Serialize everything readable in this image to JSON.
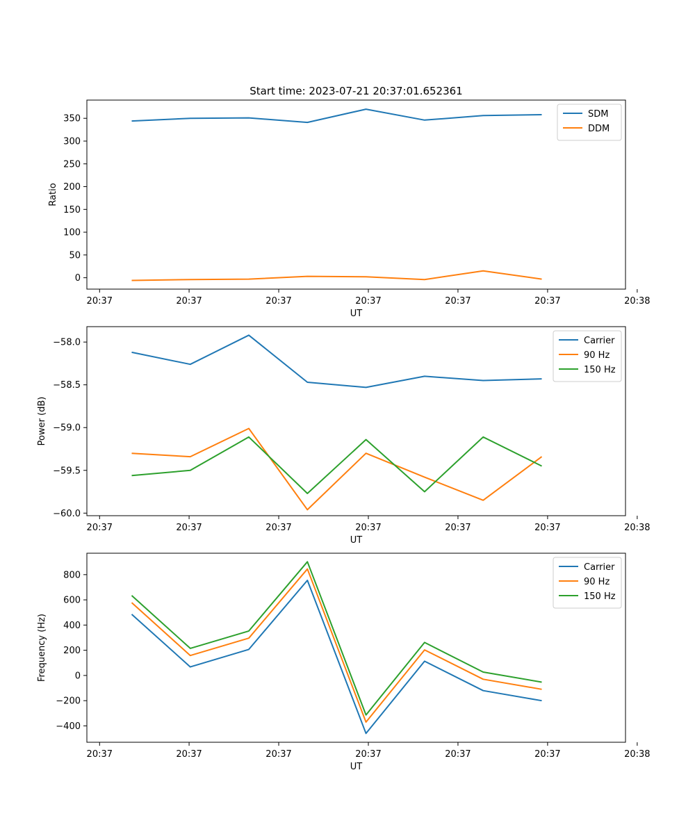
{
  "title": "Start time: 2023-07-21 20:37:01.652361",
  "colors": {
    "blue": "#1f77b4",
    "orange": "#ff7f0e",
    "green": "#2ca02c"
  },
  "chart_data": [
    {
      "type": "line",
      "ylabel": "Ratio",
      "xlabel": "UT",
      "x": [
        1,
        2,
        3,
        4,
        5,
        6,
        7,
        8
      ],
      "xlim": [
        0.235,
        9.43
      ],
      "xticks": [
        0.452,
        1.98,
        3.51,
        5.04,
        6.57,
        8.1,
        9.63
      ],
      "xtick_labels": [
        "20:37",
        "20:37",
        "20:37",
        "20:37",
        "20:37",
        "20:37",
        "20:38"
      ],
      "ylim": [
        -25,
        390
      ],
      "yticks": [
        0,
        50,
        100,
        150,
        200,
        250,
        300,
        350
      ],
      "ytick_labels": [
        "0",
        "50",
        "100",
        "150",
        "200",
        "250",
        "300",
        "350"
      ],
      "legend_loc": "upper right",
      "series": [
        {
          "name": "SDM",
          "color": "blue",
          "values": [
            344,
            350,
            351,
            341,
            370,
            346,
            356,
            358
          ]
        },
        {
          "name": "DDM",
          "color": "orange",
          "values": [
            -6,
            -4,
            -3,
            3,
            2,
            -4,
            15,
            -3
          ]
        }
      ]
    },
    {
      "type": "line",
      "ylabel": "Power (dB)",
      "xlabel": "UT",
      "x": [
        1,
        2,
        3,
        4,
        5,
        6,
        7,
        8
      ],
      "xlim": [
        0.235,
        9.43
      ],
      "xticks": [
        0.452,
        1.98,
        3.51,
        5.04,
        6.57,
        8.1,
        9.63
      ],
      "xtick_labels": [
        "20:37",
        "20:37",
        "20:37",
        "20:37",
        "20:37",
        "20:37",
        "20:38"
      ],
      "ylim": [
        -60.03,
        -57.82
      ],
      "yticks": [
        -60.0,
        -59.5,
        -59.0,
        -58.5,
        -58.0
      ],
      "ytick_labels": [
        "−60.0",
        "−59.5",
        "−59.0",
        "−58.5",
        "−58.0"
      ],
      "legend_loc": "upper right",
      "series": [
        {
          "name": "Carrier",
          "color": "blue",
          "values": [
            -58.12,
            -58.26,
            -57.92,
            -58.47,
            -58.53,
            -58.4,
            -58.45,
            -58.43
          ]
        },
        {
          "name": "90 Hz",
          "color": "orange",
          "values": [
            -59.3,
            -59.34,
            -59.01,
            -59.96,
            -59.3,
            -59.58,
            -59.85,
            -59.34
          ]
        },
        {
          "name": "150 Hz",
          "color": "green",
          "values": [
            -59.56,
            -59.5,
            -59.11,
            -59.77,
            -59.14,
            -59.75,
            -59.11,
            -59.45
          ]
        }
      ]
    },
    {
      "type": "line",
      "ylabel": "Frequency (Hz)",
      "xlabel": "UT",
      "x": [
        1,
        2,
        3,
        4,
        5,
        6,
        7,
        8
      ],
      "xlim": [
        0.235,
        9.43
      ],
      "xticks": [
        0.452,
        1.98,
        3.51,
        5.04,
        6.57,
        8.1,
        9.63
      ],
      "xtick_labels": [
        "20:37",
        "20:37",
        "20:37",
        "20:37",
        "20:37",
        "20:37",
        "20:38"
      ],
      "ylim": [
        -530,
        970
      ],
      "yticks": [
        -400,
        -200,
        0,
        200,
        400,
        600,
        800
      ],
      "ytick_labels": [
        "−400",
        "−200",
        "0",
        "200",
        "400",
        "600",
        "800"
      ],
      "legend_loc": "upper right",
      "series": [
        {
          "name": "Carrier",
          "color": "blue",
          "values": [
            485,
            68,
            207,
            755,
            -460,
            113,
            -120,
            -200
          ]
        },
        {
          "name": "90 Hz",
          "color": "orange",
          "values": [
            578,
            158,
            296,
            845,
            -370,
            203,
            -30,
            -110
          ]
        },
        {
          "name": "150 Hz",
          "color": "green",
          "values": [
            634,
            215,
            353,
            902,
            -313,
            262,
            27,
            -53
          ]
        }
      ]
    }
  ]
}
